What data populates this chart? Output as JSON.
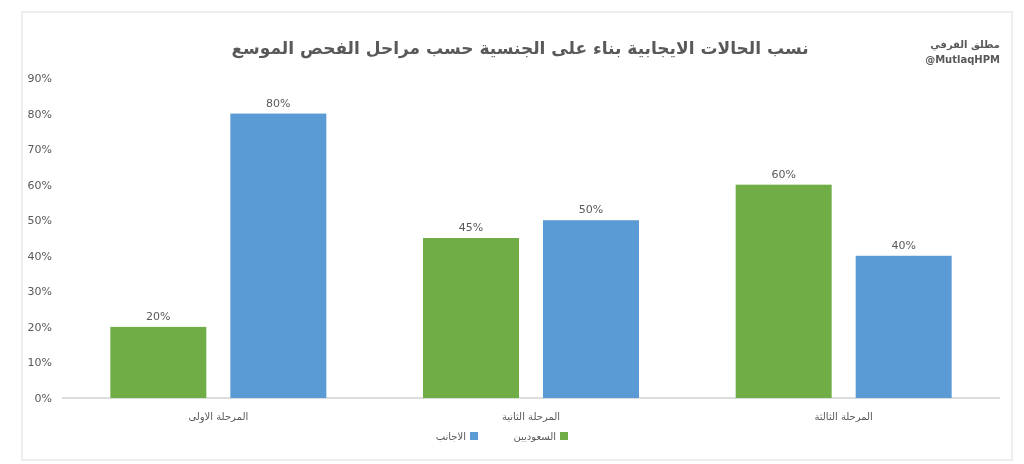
{
  "chart_data": {
    "type": "bar",
    "title": "نسب الحالات الايجابية بناء على الجنسية حسب مراحل الفحص الموسع",
    "categories": [
      "المرحلة الاولى",
      "المرحلة الثانية",
      "المرحلة الثالثة"
    ],
    "series": [
      {
        "name": "السعوديين",
        "color": "#70ad47",
        "values": [
          20,
          45,
          60
        ],
        "value_labels": [
          "20%",
          "45%",
          "60%"
        ]
      },
      {
        "name": "الاجانب",
        "color": "#5b9bd5",
        "values": [
          80,
          50,
          40
        ],
        "value_labels": [
          "80%",
          "50%",
          "40%"
        ]
      }
    ],
    "ylim": [
      0,
      90
    ],
    "yticks": [
      {
        "value": 0,
        "label": "0%"
      },
      {
        "value": 10,
        "label": "10%"
      },
      {
        "value": 20,
        "label": "20%"
      },
      {
        "value": 30,
        "label": "30%"
      },
      {
        "value": 40,
        "label": "40%"
      },
      {
        "value": 50,
        "label": "50%"
      },
      {
        "value": 60,
        "label": "60%"
      },
      {
        "value": 70,
        "label": "70%"
      },
      {
        "value": 80,
        "label": "80%"
      },
      {
        "value": 90,
        "label": "90%"
      }
    ],
    "legend": "bottom",
    "annotations": [
      "مطلق القرفي",
      "@MutlaqHPM"
    ]
  }
}
